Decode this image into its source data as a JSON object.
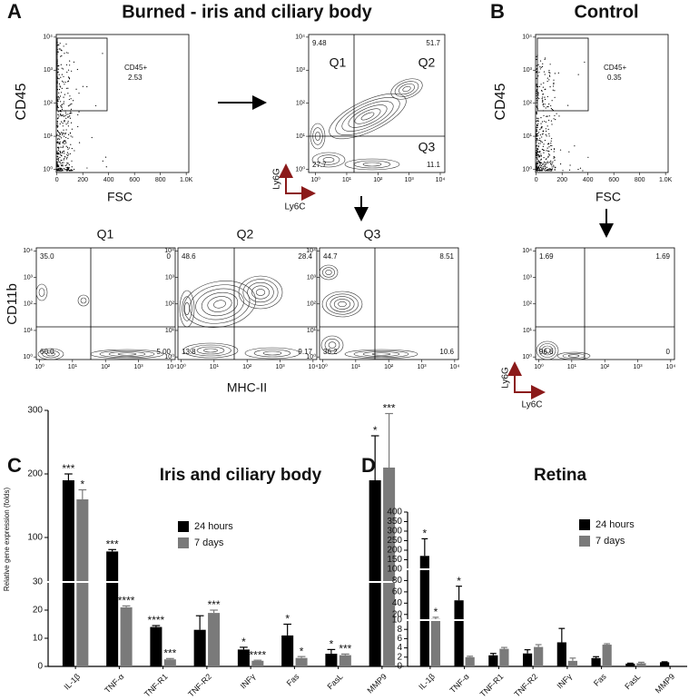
{
  "figure": {
    "panels": [
      {
        "letter": "A",
        "title": "Burned - iris and ciliary body"
      },
      {
        "letter": "B",
        "title": "Control"
      },
      {
        "letter": "C"
      },
      {
        "letter": "D"
      }
    ]
  },
  "chart_data": [
    {
      "type": "flow",
      "y_label": "CD45",
      "x_label": "FSC",
      "gate_label": "CD45+",
      "gate_value": "2.53",
      "xlim": [
        -5,
        1020
      ],
      "xticks": [
        0,
        200,
        400,
        600,
        800,
        {
          "value": 1000,
          "label": "1.0K"
        }
      ],
      "yscale": "log",
      "ylim": [
        0.8,
        12000
      ],
      "yticks": [
        {
          "value": 1,
          "label": "10⁰"
        },
        {
          "value": 10,
          "label": "10¹"
        },
        {
          "value": 100,
          "label": "10²"
        },
        {
          "value": 1000,
          "label": "10³"
        },
        {
          "value": 10000,
          "label": "10⁴"
        }
      ]
    },
    {
      "type": "flow",
      "y_label": "Ly6G",
      "x_label": "Ly6C",
      "quadrant_names": [
        "Q1",
        "Q2",
        "Q3"
      ],
      "quadrants": [
        "9.48",
        "51.7",
        "27.7",
        "11.1"
      ],
      "xscale": "log",
      "xlim": [
        0.6,
        14000
      ],
      "xticks": [
        {
          "value": 1,
          "label": "10⁰"
        },
        {
          "value": 10,
          "label": "10¹"
        },
        {
          "value": 100,
          "label": "10²"
        },
        {
          "value": 1000,
          "label": "10³"
        },
        {
          "value": 10000,
          "label": "10⁴"
        }
      ],
      "yscale": "log",
      "ylim": [
        0.8,
        12000
      ],
      "yticks": [
        {
          "value": 1,
          "label": "10⁰"
        },
        {
          "value": 10,
          "label": "10¹"
        },
        {
          "value": 100,
          "label": "10²"
        },
        {
          "value": 1000,
          "label": "10³"
        },
        {
          "value": 10000,
          "label": "10⁴"
        }
      ]
    },
    {
      "type": "flow",
      "title": "Q1",
      "y_label": "CD11b",
      "quadrants": [
        "35.0",
        "0",
        "60.0",
        "5.00"
      ],
      "xscale": "log",
      "xlim": [
        0.8,
        13000
      ],
      "xticks": [
        {
          "value": 1,
          "label": "10⁰"
        },
        {
          "value": 10,
          "label": "10¹"
        },
        {
          "value": 100,
          "label": "10²"
        },
        {
          "value": 1000,
          "label": "10³"
        },
        {
          "value": 10000,
          "label": "10⁴"
        }
      ],
      "yscale": "log",
      "ylim": [
        0.8,
        13000
      ],
      "yticks": [
        {
          "value": 1,
          "label": "10⁰"
        },
        {
          "value": 10,
          "label": "10¹"
        },
        {
          "value": 100,
          "label": "10²"
        },
        {
          "value": 1000,
          "label": "10³"
        },
        {
          "value": 10000,
          "label": "10⁴"
        }
      ]
    },
    {
      "type": "flow",
      "title": "Q2",
      "x_label": "MHC-II",
      "quadrants": [
        "48.6",
        "28.4",
        "13.8",
        "9.17"
      ],
      "xscale": "log",
      "xlim": [
        0.8,
        13000
      ],
      "xticks": [
        {
          "value": 1,
          "label": "10⁰"
        },
        {
          "value": 10,
          "label": "10¹"
        },
        {
          "value": 100,
          "label": "10²"
        },
        {
          "value": 1000,
          "label": "10³"
        },
        {
          "value": 10000,
          "label": "10⁴"
        }
      ],
      "yscale": "log",
      "ylim": [
        0.8,
        13000
      ],
      "yticks": [
        {
          "value": 1,
          "label": "10⁰"
        },
        {
          "value": 10,
          "label": "10¹"
        },
        {
          "value": 100,
          "label": "10²"
        },
        {
          "value": 1000,
          "label": "10³"
        },
        {
          "value": 10000,
          "label": "10⁴"
        }
      ]
    },
    {
      "type": "flow",
      "title": "Q3",
      "quadrants": [
        "44.7",
        "8.51",
        "36.2",
        "10.6"
      ],
      "xscale": "log",
      "xlim": [
        0.8,
        13000
      ],
      "xticks": [
        {
          "value": 1,
          "label": "10⁰"
        },
        {
          "value": 10,
          "label": "10¹"
        },
        {
          "value": 100,
          "label": "10²"
        },
        {
          "value": 1000,
          "label": "10³"
        },
        {
          "value": 10000,
          "label": "10⁴"
        }
      ],
      "yscale": "log",
      "ylim": [
        0.8,
        13000
      ],
      "yticks": [
        {
          "value": 1,
          "label": "10⁰"
        },
        {
          "value": 10,
          "label": "10¹"
        },
        {
          "value": 100,
          "label": "10²"
        },
        {
          "value": 1000,
          "label": "10³"
        },
        {
          "value": 10000,
          "label": "10⁴"
        }
      ]
    },
    {
      "type": "flow",
      "y_label": "CD45",
      "x_label": "FSC",
      "gate_label": "CD45+",
      "gate_value": "0.35",
      "xlim": [
        -5,
        1020
      ],
      "xticks": [
        0,
        200,
        400,
        600,
        800,
        {
          "value": 1000,
          "label": "1.0K"
        }
      ],
      "yscale": "log",
      "ylim": [
        0.8,
        12000
      ],
      "yticks": [
        {
          "value": 1,
          "label": "10⁰"
        },
        {
          "value": 10,
          "label": "10¹"
        },
        {
          "value": 100,
          "label": "10²"
        },
        {
          "value": 1000,
          "label": "10³"
        },
        {
          "value": 10000,
          "label": "10⁴"
        }
      ]
    },
    {
      "type": "flow",
      "y_label": "Ly6G",
      "x_label": "Ly6C",
      "quadrants": [
        "1.69",
        "1.69",
        "96.6",
        "0"
      ],
      "xscale": "log",
      "xlim": [
        0.8,
        13000
      ],
      "xticks": [
        {
          "value": 1,
          "label": "10⁰"
        },
        {
          "value": 10,
          "label": "10¹"
        },
        {
          "value": 100,
          "label": "10²"
        },
        {
          "value": 1000,
          "label": "10³"
        },
        {
          "value": 10000,
          "label": "10⁴"
        }
      ],
      "yscale": "log",
      "ylim": [
        0.8,
        13000
      ],
      "yticks": [
        {
          "value": 1,
          "label": "10⁰"
        },
        {
          "value": 10,
          "label": "10¹"
        },
        {
          "value": 100,
          "label": "10²"
        },
        {
          "value": 1000,
          "label": "10³"
        },
        {
          "value": 10000,
          "label": "10⁴"
        }
      ]
    },
    {
      "type": "bar",
      "title": "Iris and ciliary body",
      "y_label": "Relative gene expression (folds)",
      "categories": [
        "IL-1β",
        "TNF-α",
        "TNF-R1",
        "TNF-R2",
        "INFγ",
        "Fas",
        "FasL",
        "MMP9"
      ],
      "y_segments": [
        {
          "ylim": [
            0,
            30
          ],
          "yticks": [
            0,
            10,
            20,
            30
          ]
        },
        {
          "ylim": [
            30,
            300
          ],
          "yticks": [
            100,
            200,
            300
          ]
        }
      ],
      "series": [
        {
          "name": "24 hours",
          "color": "#000000",
          "values": [
            190,
            78,
            14,
            13,
            6,
            11,
            4.5,
            190
          ],
          "errors": [
            10,
            3,
            0.5,
            5,
            0.8,
            4,
            1.5,
            70
          ],
          "significance": [
            "***",
            "***",
            "****",
            null,
            "*",
            "*",
            "*",
            "*"
          ]
        },
        {
          "name": "7 days",
          "color": "#7a7a7a",
          "values": [
            160,
            21,
            2.5,
            19,
            2,
            3,
            4,
            210
          ],
          "errors": [
            15,
            0.5,
            0.3,
            1,
            0.2,
            0.5,
            0.4,
            85
          ],
          "significance": [
            "*",
            "****",
            "***",
            "***",
            "****",
            "*",
            "***",
            "***"
          ]
        }
      ]
    },
    {
      "type": "bar",
      "title": "Retina",
      "categories": [
        "IL-1β",
        "TNF-α",
        "TNF-R1",
        "TNF-R2",
        "INFγ",
        "Fas",
        "FasL",
        "MMP9"
      ],
      "y_segments": [
        {
          "ylim": [
            0,
            10
          ],
          "yticks": [
            0,
            2,
            4,
            6,
            8,
            10
          ]
        },
        {
          "ylim": [
            10,
            100
          ],
          "yticks": [
            20,
            40,
            60,
            80,
            100
          ]
        },
        {
          "ylim": [
            100,
            400
          ],
          "yticks": [
            150,
            200,
            250,
            300,
            350,
            400
          ]
        }
      ],
      "series": [
        {
          "name": "24 hours",
          "color": "#000000",
          "values": [
            170,
            45,
            2.4,
            2.8,
            5.2,
            1.8,
            0.6,
            0.9
          ],
          "errors": [
            90,
            25,
            0.4,
            0.8,
            3,
            0.3,
            0.1,
            0.1
          ],
          "significance": [
            "*",
            "*",
            null,
            null,
            null,
            null,
            null,
            null
          ]
        },
        {
          "name": "7 days",
          "color": "#7a7a7a",
          "values": [
            12,
            2,
            3.8,
            4.2,
            1.2,
            4.7,
            0.7,
            null
          ],
          "errors": [
            3,
            0.2,
            0.3,
            0.5,
            0.6,
            0.2,
            0.2,
            null
          ],
          "significance": [
            "*",
            null,
            null,
            null,
            null,
            null,
            null,
            null
          ]
        }
      ]
    }
  ]
}
